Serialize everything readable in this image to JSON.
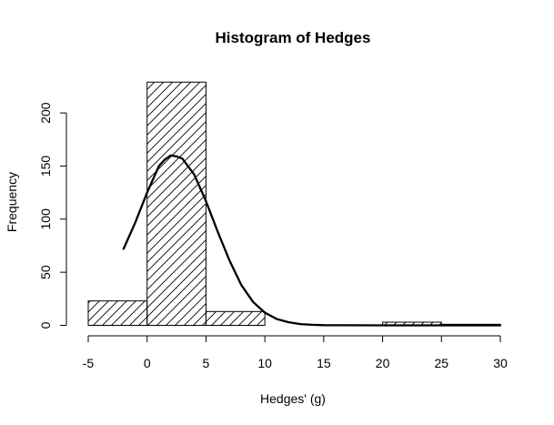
{
  "chart_data": {
    "type": "bar",
    "title": "Histogram of Hedges",
    "xlabel": "Hedges' (g)",
    "ylabel": "Frequency",
    "xlim": [
      -5,
      30
    ],
    "ylim": [
      0,
      230
    ],
    "x_ticks": [
      -5,
      0,
      5,
      10,
      15,
      20,
      25,
      30
    ],
    "y_ticks": [
      0,
      50,
      100,
      150,
      200
    ],
    "bins": [
      {
        "start": -5,
        "end": 0,
        "count": 23
      },
      {
        "start": 0,
        "end": 5,
        "count": 229
      },
      {
        "start": 5,
        "end": 10,
        "count": 13
      },
      {
        "start": 10,
        "end": 15,
        "count": 0
      },
      {
        "start": 15,
        "end": 20,
        "count": 0
      },
      {
        "start": 20,
        "end": 25,
        "count": 3
      },
      {
        "start": 25,
        "end": 30,
        "count": 1
      }
    ],
    "fill_pattern": "diagonal hatch",
    "density_curve": {
      "x": [
        -2,
        -1,
        0,
        1,
        1.5,
        2,
        2.5,
        3,
        4,
        5,
        6,
        7,
        8,
        9,
        10,
        11,
        12,
        13,
        14,
        15,
        20,
        25,
        30
      ],
      "y": [
        72,
        97,
        125,
        150,
        156,
        160,
        159,
        157,
        142,
        117,
        88,
        61,
        38,
        22,
        12,
        6,
        3,
        1.2,
        0.5,
        0.2,
        0,
        0,
        0
      ]
    },
    "grid": false,
    "legend": "none",
    "colors": {
      "bars": "#000000",
      "curve": "#000000",
      "background": "#ffffff"
    }
  }
}
